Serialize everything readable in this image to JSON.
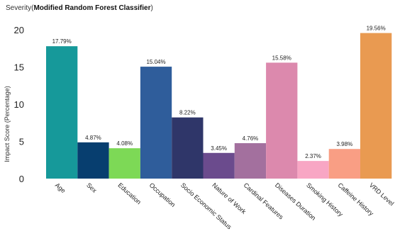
{
  "chart_data": {
    "type": "bar",
    "title_prefix": "Severity(",
    "title_bold": "Modified Random Forest Classifier",
    "title_suffix": ")",
    "ylabel": "Impact Score (Percentage)",
    "xlabel": "",
    "ylim": [
      0,
      20
    ],
    "yticks": [
      0,
      5,
      10,
      15,
      20
    ],
    "grid": false,
    "categories": [
      "Age",
      "Sex",
      "Education",
      "Occupation",
      "Socio Economic Status",
      "Nature of Work",
      "Cardinal Features",
      "Diseases Duration",
      "Smoking History",
      "Caffeine History",
      "VRD Level"
    ],
    "values": [
      17.79,
      4.87,
      4.08,
      15.04,
      8.22,
      3.45,
      4.76,
      15.58,
      2.37,
      3.98,
      19.56
    ],
    "value_labels": [
      "17.79%",
      "4.87%",
      "4.08%",
      "15.04%",
      "8.22%",
      "3.45%",
      "4.76%",
      "15.58%",
      "2.37%",
      "3.98%",
      "19.56%"
    ],
    "colors": [
      "#16999a",
      "#073e6f",
      "#7dd956",
      "#2f5d9b",
      "#2f3669",
      "#6b4b8d",
      "#a3709e",
      "#dc89ad",
      "#f8a6c4",
      "#f99e84",
      "#e99a51"
    ]
  }
}
